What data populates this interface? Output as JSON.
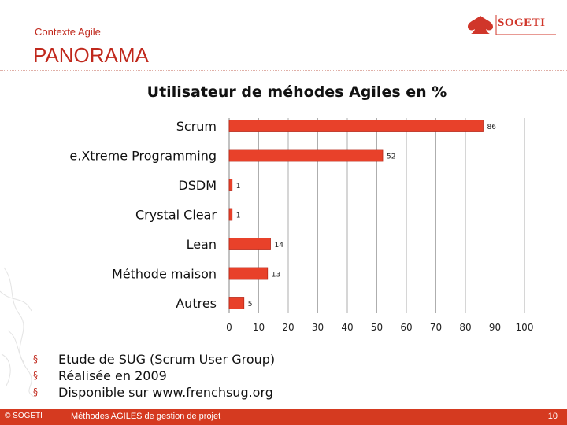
{
  "header": {
    "context_label": "Contexte Agile",
    "slide_title": "PANORAMA",
    "logo_text": "SOGETI"
  },
  "chart_data": {
    "type": "bar",
    "orientation": "horizontal",
    "title": "Utilisateur de méhodes Agiles en %",
    "categories": [
      "Scrum",
      "e.Xtreme Programming",
      "DSDM",
      "Crystal Clear",
      "Lean",
      "Méthode maison",
      "Autres"
    ],
    "values": [
      86,
      52,
      1,
      1,
      14,
      13,
      5
    ],
    "xlim": [
      0,
      100
    ],
    "xticks": [
      0,
      10,
      20,
      30,
      40,
      50,
      60,
      70,
      80,
      90,
      100
    ],
    "grid": true,
    "bar_color": "#e8412a",
    "bar_edge_color": "#b8291a",
    "grid_color": "#9a9a9a"
  },
  "bullets": [
    "Etude de SUG (Scrum User Group)",
    "Réalisée en 2009",
    "Disponible sur www.frenchsug.org"
  ],
  "footer": {
    "copyright": "© SOGETI",
    "subtitle": "Méthodes AGILES de gestion de projet",
    "page_number": "10"
  }
}
